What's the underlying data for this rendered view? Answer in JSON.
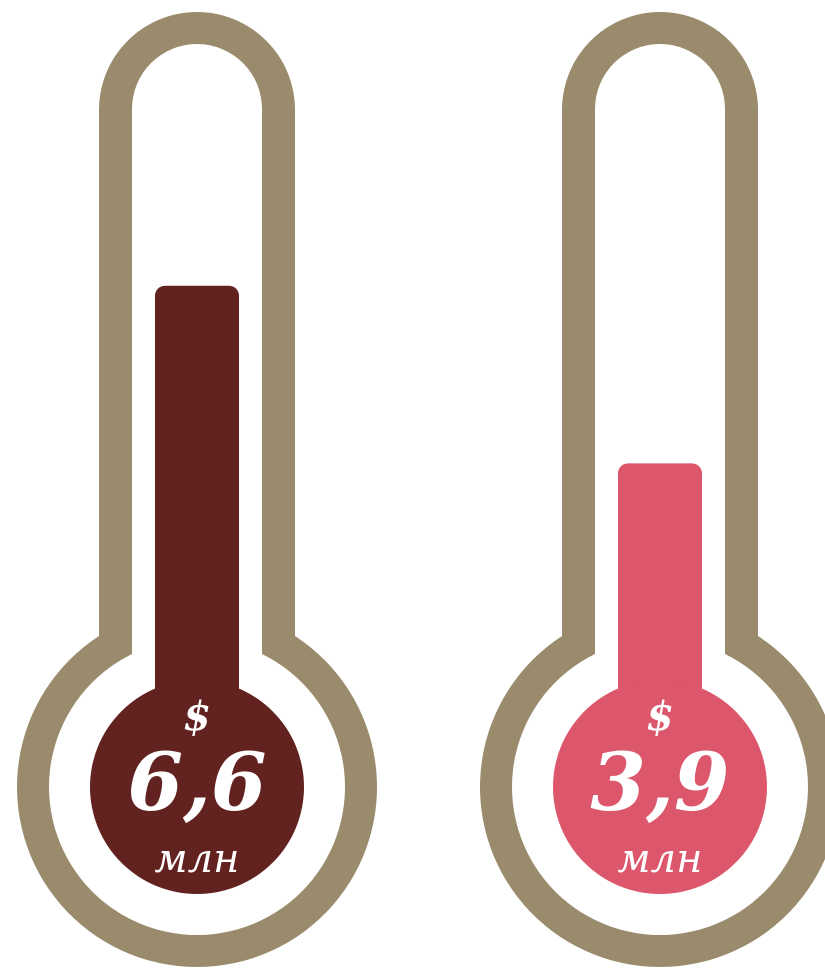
{
  "colors": {
    "frame": "#998b6b",
    "inner": "#ffffff",
    "background": "#ffffff"
  },
  "chart_data": {
    "type": "bar",
    "style": "thermometer",
    "grid": false,
    "ylim": [
      0,
      10
    ],
    "categories": [
      "",
      ""
    ],
    "values": [
      6.6,
      3.9
    ],
    "items": [
      {
        "currency": "$",
        "value": 6.6,
        "label": "6,6",
        "unit": "млн",
        "color": "#62221f"
      },
      {
        "currency": "$",
        "value": 3.9,
        "label": "3,9",
        "unit": "млн",
        "color": "#dc566c"
      }
    ]
  }
}
